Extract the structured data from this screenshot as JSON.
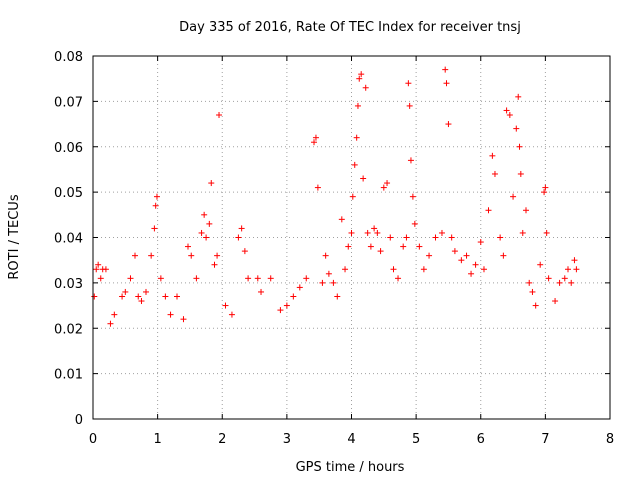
{
  "chart_data": {
    "type": "scatter",
    "title": "Day 335 of 2016, Rate Of TEC Index for receiver tnsj",
    "xlabel": "GPS time / hours",
    "ylabel": "ROTI / TECUs",
    "xlim": [
      0,
      8
    ],
    "ylim": [
      0,
      0.08
    ],
    "x_ticks": [
      "0",
      "1",
      "2",
      "3",
      "4",
      "5",
      "6",
      "7",
      "8"
    ],
    "y_ticks": [
      "0",
      "0.01",
      "0.02",
      "0.03",
      "0.04",
      "0.05",
      "0.06",
      "0.07",
      "0.08"
    ],
    "grid": true,
    "marker": "plus",
    "color": "#ff0000",
    "series": [
      {
        "name": "ROTI",
        "points": [
          [
            0.02,
            0.027
          ],
          [
            0.05,
            0.033
          ],
          [
            0.08,
            0.034
          ],
          [
            0.12,
            0.031
          ],
          [
            0.15,
            0.033
          ],
          [
            0.2,
            0.033
          ],
          [
            0.27,
            0.021
          ],
          [
            0.33,
            0.023
          ],
          [
            0.45,
            0.027
          ],
          [
            0.5,
            0.028
          ],
          [
            0.58,
            0.031
          ],
          [
            0.65,
            0.036
          ],
          [
            0.7,
            0.027
          ],
          [
            0.75,
            0.026
          ],
          [
            0.82,
            0.028
          ],
          [
            0.9,
            0.036
          ],
          [
            0.95,
            0.042
          ],
          [
            0.97,
            0.047
          ],
          [
            0.99,
            0.049
          ],
          [
            1.05,
            0.031
          ],
          [
            1.12,
            0.027
          ],
          [
            1.2,
            0.023
          ],
          [
            1.3,
            0.027
          ],
          [
            1.4,
            0.022
          ],
          [
            1.47,
            0.038
          ],
          [
            1.52,
            0.036
          ],
          [
            1.6,
            0.031
          ],
          [
            1.68,
            0.041
          ],
          [
            1.72,
            0.045
          ],
          [
            1.75,
            0.04
          ],
          [
            1.8,
            0.043
          ],
          [
            1.83,
            0.052
          ],
          [
            1.88,
            0.034
          ],
          [
            1.92,
            0.036
          ],
          [
            1.95,
            0.067
          ],
          [
            2.05,
            0.025
          ],
          [
            2.15,
            0.023
          ],
          [
            2.25,
            0.04
          ],
          [
            2.3,
            0.042
          ],
          [
            2.35,
            0.037
          ],
          [
            2.4,
            0.031
          ],
          [
            2.55,
            0.031
          ],
          [
            2.6,
            0.028
          ],
          [
            2.75,
            0.031
          ],
          [
            2.9,
            0.024
          ],
          [
            3.0,
            0.025
          ],
          [
            3.1,
            0.027
          ],
          [
            3.2,
            0.029
          ],
          [
            3.3,
            0.031
          ],
          [
            3.42,
            0.061
          ],
          [
            3.45,
            0.062
          ],
          [
            3.48,
            0.051
          ],
          [
            3.55,
            0.03
          ],
          [
            3.6,
            0.036
          ],
          [
            3.65,
            0.032
          ],
          [
            3.72,
            0.03
          ],
          [
            3.78,
            0.027
          ],
          [
            3.85,
            0.044
          ],
          [
            3.9,
            0.033
          ],
          [
            3.95,
            0.038
          ],
          [
            4.0,
            0.041
          ],
          [
            4.02,
            0.049
          ],
          [
            4.05,
            0.056
          ],
          [
            4.08,
            0.062
          ],
          [
            4.1,
            0.069
          ],
          [
            4.12,
            0.075
          ],
          [
            4.15,
            0.076
          ],
          [
            4.18,
            0.053
          ],
          [
            4.22,
            0.073
          ],
          [
            4.25,
            0.041
          ],
          [
            4.3,
            0.038
          ],
          [
            4.35,
            0.042
          ],
          [
            4.4,
            0.041
          ],
          [
            4.45,
            0.037
          ],
          [
            4.5,
            0.051
          ],
          [
            4.55,
            0.052
          ],
          [
            4.6,
            0.04
          ],
          [
            4.65,
            0.033
          ],
          [
            4.72,
            0.031
          ],
          [
            4.8,
            0.038
          ],
          [
            4.85,
            0.04
          ],
          [
            4.88,
            0.074
          ],
          [
            4.9,
            0.069
          ],
          [
            4.92,
            0.057
          ],
          [
            4.95,
            0.049
          ],
          [
            4.98,
            0.043
          ],
          [
            5.05,
            0.038
          ],
          [
            5.12,
            0.033
          ],
          [
            5.2,
            0.036
          ],
          [
            5.3,
            0.04
          ],
          [
            5.4,
            0.041
          ],
          [
            5.45,
            0.077
          ],
          [
            5.47,
            0.074
          ],
          [
            5.5,
            0.065
          ],
          [
            5.55,
            0.04
          ],
          [
            5.6,
            0.037
          ],
          [
            5.7,
            0.035
          ],
          [
            5.78,
            0.036
          ],
          [
            5.85,
            0.032
          ],
          [
            5.92,
            0.034
          ],
          [
            6.0,
            0.039
          ],
          [
            6.05,
            0.033
          ],
          [
            6.12,
            0.046
          ],
          [
            6.18,
            0.058
          ],
          [
            6.22,
            0.054
          ],
          [
            6.3,
            0.04
          ],
          [
            6.35,
            0.036
          ],
          [
            6.4,
            0.068
          ],
          [
            6.45,
            0.067
          ],
          [
            6.5,
            0.049
          ],
          [
            6.55,
            0.064
          ],
          [
            6.58,
            0.071
          ],
          [
            6.6,
            0.06
          ],
          [
            6.62,
            0.054
          ],
          [
            6.65,
            0.041
          ],
          [
            6.7,
            0.046
          ],
          [
            6.75,
            0.03
          ],
          [
            6.8,
            0.028
          ],
          [
            6.85,
            0.025
          ],
          [
            6.92,
            0.034
          ],
          [
            6.98,
            0.05
          ],
          [
            7.0,
            0.051
          ],
          [
            7.02,
            0.041
          ],
          [
            7.05,
            0.031
          ],
          [
            7.15,
            0.026
          ],
          [
            7.22,
            0.03
          ],
          [
            7.3,
            0.031
          ],
          [
            7.35,
            0.033
          ],
          [
            7.4,
            0.03
          ],
          [
            7.45,
            0.035
          ],
          [
            7.48,
            0.033
          ]
        ]
      }
    ]
  }
}
